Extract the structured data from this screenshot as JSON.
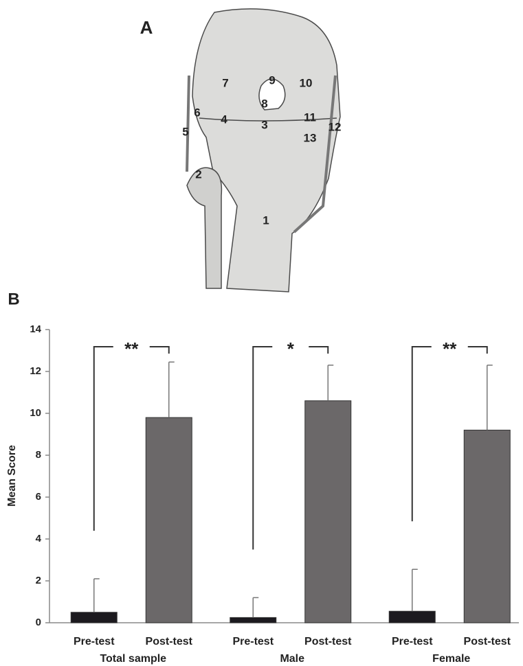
{
  "panel_a": {
    "label": "A",
    "annotations": [
      "1",
      "2",
      "3",
      "4",
      "5",
      "6",
      "7",
      "8",
      "9",
      "10",
      "11",
      "12",
      "13"
    ]
  },
  "chart_data": {
    "type": "bar",
    "panel_label": "B",
    "y_label": "Mean Score",
    "categories": [
      "Total sample",
      "Male",
      "Female"
    ],
    "series": [
      {
        "name": "Pre-test",
        "color": "#1c1a1f",
        "values": [
          0.5,
          0.25,
          0.55
        ],
        "errors": [
          1.6,
          0.95,
          2.0
        ]
      },
      {
        "name": "Post-test",
        "color": "#6b6869",
        "values": [
          9.8,
          10.6,
          9.2
        ],
        "errors": [
          2.65,
          1.7,
          3.1
        ]
      }
    ],
    "significance": [
      "**",
      "*",
      "**"
    ],
    "ylim": [
      0,
      14
    ],
    "yticks": [
      0,
      2,
      4,
      6,
      8,
      10,
      12,
      14
    ]
  }
}
